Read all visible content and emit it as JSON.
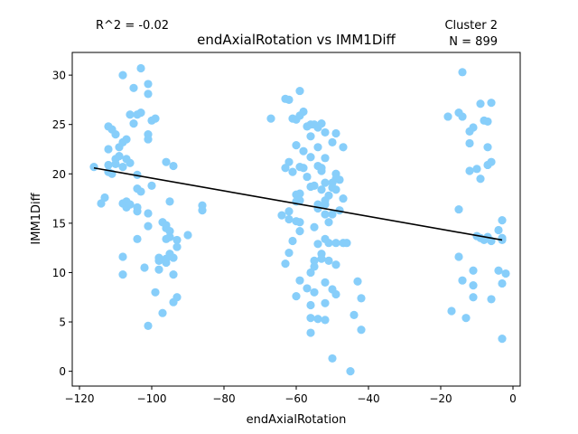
{
  "chart_data": {
    "type": "scatter",
    "title": "endAxialRotation vs IMM1Diff",
    "xlabel": "endAxialRotation",
    "ylabel": "IMM1Diff",
    "annotation_left": "R^2 = -0.02",
    "annotation_right_line1": "Cluster 2",
    "annotation_right_line2": "N = 899",
    "xlim": [
      -122,
      2
    ],
    "ylim": [
      -1.5,
      32.3
    ],
    "x_ticks": [
      -120,
      -100,
      -80,
      -60,
      -40,
      -20,
      0
    ],
    "y_ticks": [
      0,
      5,
      10,
      15,
      20,
      25,
      30
    ],
    "grid": false,
    "colors": {
      "points": "#87cefa",
      "fit_line": "#000000"
    },
    "fit_line": {
      "x": [
        -116,
        -3
      ],
      "y": [
        20.6,
        13.3
      ]
    },
    "points": [
      [
        -116,
        20.7
      ],
      [
        -114,
        17.0
      ],
      [
        -113,
        17.6
      ],
      [
        -112,
        20.9
      ],
      [
        -112,
        20.2
      ],
      [
        -112,
        22.5
      ],
      [
        -112,
        24.8
      ],
      [
        -111,
        20.0
      ],
      [
        -111,
        24.5
      ],
      [
        -110,
        21.5
      ],
      [
        -110,
        24.0
      ],
      [
        -110,
        21.0
      ],
      [
        -109,
        21.8
      ],
      [
        -109,
        22.7
      ],
      [
        -108,
        30.0
      ],
      [
        -108,
        17.0
      ],
      [
        -108,
        23.2
      ],
      [
        -108,
        20.7
      ],
      [
        -108,
        11.6
      ],
      [
        -108,
        9.8
      ],
      [
        -107,
        21.5
      ],
      [
        -107,
        16.6
      ],
      [
        -107,
        17.2
      ],
      [
        -107,
        23.5
      ],
      [
        -106,
        21.1
      ],
      [
        -106,
        26.0
      ],
      [
        -106,
        16.9
      ],
      [
        -105,
        28.7
      ],
      [
        -105,
        25.1
      ],
      [
        -104,
        26.0
      ],
      [
        -104,
        16.2
      ],
      [
        -104,
        16.6
      ],
      [
        -104,
        19.9
      ],
      [
        -104,
        18.5
      ],
      [
        -104,
        13.4
      ],
      [
        -103,
        30.7
      ],
      [
        -103,
        26.2
      ],
      [
        -103,
        18.2
      ],
      [
        -102,
        10.5
      ],
      [
        -101,
        23.5
      ],
      [
        -101,
        24.0
      ],
      [
        -101,
        28.1
      ],
      [
        -101,
        29.1
      ],
      [
        -101,
        16.0
      ],
      [
        -101,
        14.7
      ],
      [
        -101,
        4.6
      ],
      [
        -100,
        25.4
      ],
      [
        -100,
        18.8
      ],
      [
        -99,
        25.6
      ],
      [
        -99,
        8.0
      ],
      [
        -98,
        11.5
      ],
      [
        -98,
        10.3
      ],
      [
        -98,
        11.2
      ],
      [
        -97,
        5.9
      ],
      [
        -97,
        15.1
      ],
      [
        -96,
        21.2
      ],
      [
        -96,
        13.4
      ],
      [
        -96,
        11.4
      ],
      [
        -96,
        11.0
      ],
      [
        -96,
        14.5
      ],
      [
        -96,
        14.8
      ],
      [
        -95,
        14.2
      ],
      [
        -95,
        17.2
      ],
      [
        -95,
        13.6
      ],
      [
        -95,
        11.9
      ],
      [
        -94,
        7.0
      ],
      [
        -94,
        9.8
      ],
      [
        -94,
        20.8
      ],
      [
        -94,
        11.5
      ],
      [
        -93,
        13.3
      ],
      [
        -93,
        7.5
      ],
      [
        -93,
        12.6
      ],
      [
        -90,
        13.8
      ],
      [
        -86,
        16.8
      ],
      [
        -86,
        16.3
      ],
      [
        -67,
        25.6
      ],
      [
        -64,
        15.8
      ],
      [
        -63,
        10.9
      ],
      [
        -63,
        27.6
      ],
      [
        -63,
        20.6
      ],
      [
        -62,
        15.4
      ],
      [
        -62,
        21.2
      ],
      [
        -62,
        12.0
      ],
      [
        -62,
        27.5
      ],
      [
        -62,
        16.2
      ],
      [
        -61,
        25.6
      ],
      [
        -61,
        20.2
      ],
      [
        -61,
        13.2
      ],
      [
        -60,
        17.2
      ],
      [
        -60,
        17.9
      ],
      [
        -60,
        15.2
      ],
      [
        -60,
        25.5
      ],
      [
        -60,
        7.6
      ],
      [
        -60,
        22.9
      ],
      [
        -59,
        20.7
      ],
      [
        -59,
        28.4
      ],
      [
        -59,
        25.9
      ],
      [
        -59,
        15.1
      ],
      [
        -59,
        14.2
      ],
      [
        -59,
        18.0
      ],
      [
        -59,
        17.3
      ],
      [
        -59,
        9.2
      ],
      [
        -58,
        22.3
      ],
      [
        -58,
        26.3
      ],
      [
        -58,
        20.6
      ],
      [
        -57,
        24.8
      ],
      [
        -57,
        19.7
      ],
      [
        -57,
        8.4
      ],
      [
        -56,
        25.0
      ],
      [
        -56,
        23.8
      ],
      [
        -56,
        18.7
      ],
      [
        -56,
        21.7
      ],
      [
        -56,
        10.0
      ],
      [
        -56,
        6.7
      ],
      [
        -56,
        5.4
      ],
      [
        -56,
        3.9
      ],
      [
        -55,
        14.6
      ],
      [
        -55,
        25.0
      ],
      [
        -55,
        10.6
      ],
      [
        -55,
        11.2
      ],
      [
        -55,
        8.0
      ],
      [
        -55,
        18.8
      ],
      [
        -54,
        20.8
      ],
      [
        -54,
        24.7
      ],
      [
        -54,
        16.9
      ],
      [
        -54,
        12.9
      ],
      [
        -54,
        5.3
      ],
      [
        -54,
        22.7
      ],
      [
        -54,
        16.5
      ],
      [
        -53,
        25.1
      ],
      [
        -53,
        20.6
      ],
      [
        -53,
        11.9
      ],
      [
        -53,
        11.4
      ],
      [
        -53,
        20.3
      ],
      [
        -53,
        18.4
      ],
      [
        -52,
        24.2
      ],
      [
        -52,
        21.6
      ],
      [
        -52,
        19.1
      ],
      [
        -52,
        17.3
      ],
      [
        -52,
        16.9
      ],
      [
        -52,
        15.9
      ],
      [
        -52,
        13.4
      ],
      [
        -52,
        9.0
      ],
      [
        -52,
        6.9
      ],
      [
        -52,
        5.2
      ],
      [
        -51,
        17.8
      ],
      [
        -51,
        15.1
      ],
      [
        -51,
        11.2
      ],
      [
        -51,
        13.0
      ],
      [
        -50,
        23.2
      ],
      [
        -50,
        18.6
      ],
      [
        -50,
        19.1
      ],
      [
        -50,
        8.3
      ],
      [
        -50,
        1.3
      ],
      [
        -50,
        15.9
      ],
      [
        -49,
        24.1
      ],
      [
        -49,
        18.4
      ],
      [
        -49,
        20.0
      ],
      [
        -49,
        19.5
      ],
      [
        -49,
        13.0
      ],
      [
        -49,
        10.8
      ],
      [
        -49,
        7.8
      ],
      [
        -48,
        16.3
      ],
      [
        -48,
        19.4
      ],
      [
        -47,
        22.7
      ],
      [
        -47,
        17.5
      ],
      [
        -47,
        13.0
      ],
      [
        -46,
        13.0
      ],
      [
        -45,
        0.0
      ],
      [
        -44,
        5.7
      ],
      [
        -43,
        9.1
      ],
      [
        -42,
        7.4
      ],
      [
        -42,
        4.2
      ],
      [
        -18,
        25.8
      ],
      [
        -17,
        6.1
      ],
      [
        -15,
        16.4
      ],
      [
        -15,
        26.2
      ],
      [
        -15,
        11.6
      ],
      [
        -14,
        30.3
      ],
      [
        -14,
        25.8
      ],
      [
        -14,
        9.2
      ],
      [
        -13,
        5.4
      ],
      [
        -12,
        24.3
      ],
      [
        -12,
        20.3
      ],
      [
        -12,
        23.1
      ],
      [
        -11,
        24.7
      ],
      [
        -11,
        10.2
      ],
      [
        -11,
        8.7
      ],
      [
        -11,
        7.5
      ],
      [
        -10,
        20.5
      ],
      [
        -10,
        13.7
      ],
      [
        -9,
        27.1
      ],
      [
        -9,
        19.5
      ],
      [
        -9,
        13.5
      ],
      [
        -8,
        25.4
      ],
      [
        -8,
        13.3
      ],
      [
        -7,
        22.7
      ],
      [
        -7,
        25.3
      ],
      [
        -7,
        20.9
      ],
      [
        -7,
        13.5
      ],
      [
        -7,
        13.6
      ],
      [
        -6,
        27.2
      ],
      [
        -6,
        21.2
      ],
      [
        -6,
        7.3
      ],
      [
        -6,
        13.2
      ],
      [
        -4,
        14.3
      ],
      [
        -4,
        10.2
      ],
      [
        -3,
        15.3
      ],
      [
        -3,
        13.5
      ],
      [
        -3,
        13.3
      ],
      [
        -3,
        3.3
      ],
      [
        -3,
        8.9
      ],
      [
        -2,
        9.9
      ]
    ]
  }
}
